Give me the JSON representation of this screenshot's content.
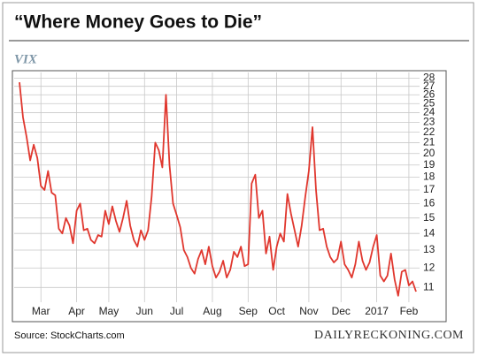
{
  "chart_data": {
    "type": "line",
    "title": "“Where Money Goes to Die”",
    "y_label": "VIX",
    "source": "Source: StockCharts.com",
    "credit": "DAILYRECKONING.COM",
    "categories": [
      null,
      null,
      null,
      null,
      null,
      null,
      "Mar",
      null,
      null,
      null,
      null,
      null,
      null,
      null,
      null,
      null,
      "Apr",
      null,
      null,
      null,
      null,
      null,
      null,
      null,
      null,
      "May",
      null,
      null,
      null,
      null,
      null,
      null,
      null,
      null,
      null,
      "Jun",
      null,
      null,
      null,
      null,
      null,
      null,
      null,
      null,
      "Jul",
      null,
      null,
      null,
      null,
      null,
      null,
      null,
      null,
      null,
      "Aug",
      null,
      null,
      null,
      null,
      null,
      null,
      null,
      null,
      null,
      "Sep",
      null,
      null,
      null,
      null,
      null,
      null,
      null,
      "Oct",
      null,
      null,
      null,
      null,
      null,
      null,
      null,
      null,
      "Nov",
      null,
      null,
      null,
      null,
      null,
      null,
      null,
      null,
      "Dec",
      null,
      null,
      null,
      null,
      null,
      null,
      null,
      null,
      null,
      "2017",
      null,
      null,
      null,
      null,
      null,
      null,
      null,
      null,
      "Feb",
      null,
      null
    ],
    "series": [
      {
        "name": "VIX",
        "color": "#e0372e",
        "values": [
          27.5,
          23.5,
          21.5,
          19.4,
          20.8,
          19.6,
          17.3,
          17,
          18.5,
          16.8,
          16.6,
          14.3,
          14,
          15,
          14.5,
          13.4,
          15.5,
          16,
          14.2,
          14.3,
          13.6,
          13.4,
          13.9,
          13.8,
          15.5,
          14.6,
          15.8,
          14.8,
          14.1,
          15,
          16.2,
          14.5,
          13.6,
          13.2,
          14.2,
          13.6,
          14.2,
          16.5,
          21,
          20.3,
          18.8,
          26,
          19,
          16,
          15.2,
          14.4,
          13,
          12.6,
          12,
          11.7,
          12.5,
          13,
          12.2,
          13.2,
          12.1,
          11.5,
          11.8,
          12.4,
          11.5,
          11.9,
          12.9,
          12.6,
          13.2,
          12.1,
          12.2,
          17.5,
          18.2,
          15,
          15.5,
          12.8,
          13.8,
          11.9,
          13.2,
          14,
          13.5,
          16.7,
          15.3,
          14.2,
          13.2,
          14.5,
          16.5,
          18.5,
          22.5,
          17,
          14.2,
          14.3,
          13.2,
          12.6,
          12.3,
          12.5,
          13.5,
          12.2,
          11.9,
          11.5,
          12.2,
          13.5,
          12.4,
          11.9,
          12.3,
          13.2,
          13.9,
          11.6,
          11.3,
          11.6,
          12.8,
          11.4,
          10.6,
          11.8,
          11.9,
          11.1,
          11.3,
          10.8
        ]
      }
    ],
    "log_scale": true,
    "ylim": [
      10.3,
      28.5
    ],
    "yticks": [
      11,
      12,
      13,
      14,
      15,
      16,
      17,
      18,
      19,
      20,
      21,
      22,
      23,
      24,
      25,
      26,
      27,
      28
    ],
    "grid": true
  }
}
